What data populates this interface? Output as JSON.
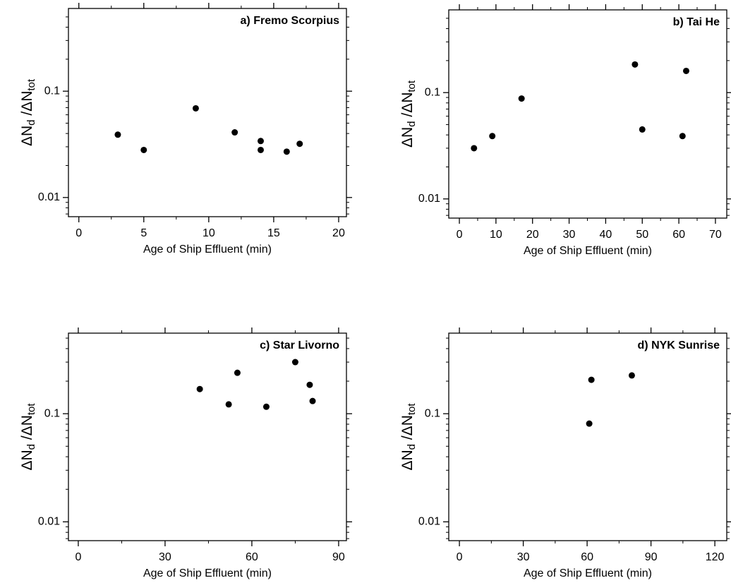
{
  "chart_data": [
    {
      "type": "scatter",
      "title": "a) Fremo Scorpius",
      "xlabel": "Age of Ship Effluent (min)",
      "ylabel_parts": [
        "ΔN",
        "d",
        " /ΔN",
        "tot"
      ],
      "log_y": true,
      "color": "#000000",
      "x": [
        3,
        5,
        9,
        12,
        14,
        14,
        16,
        17
      ],
      "values": [
        0.039,
        0.028,
        0.069,
        0.041,
        0.034,
        0.028,
        0.027,
        0.032
      ],
      "xlim": [
        -0.8,
        20.6
      ],
      "xticks": [
        0,
        5,
        10,
        15,
        20
      ],
      "xminorticks": [
        2.5,
        7.5,
        12.5,
        17.5
      ],
      "ylim": [
        0.0066,
        0.6
      ],
      "yticks": [
        0.01,
        0.1
      ],
      "yminorticks": [
        0.007,
        0.008,
        0.009,
        0.02,
        0.03,
        0.04,
        0.05,
        0.06,
        0.07,
        0.08,
        0.09,
        0.2,
        0.3,
        0.4,
        0.5
      ]
    },
    {
      "type": "scatter",
      "title": "b) Tai He",
      "xlabel": "Age of Ship Effluent (min)",
      "ylabel_parts": [
        "ΔN",
        "d",
        " /ΔN",
        "tot"
      ],
      "log_y": true,
      "color": "#000000",
      "x": [
        4,
        9,
        17,
        48,
        50,
        61,
        62
      ],
      "values": [
        0.03,
        0.039,
        0.088,
        0.184,
        0.045,
        0.039,
        0.16
      ],
      "xlim": [
        -2.9,
        73.1
      ],
      "xticks": [
        0,
        10,
        20,
        30,
        40,
        50,
        60,
        70
      ],
      "xminorticks": [
        5,
        15,
        25,
        35,
        45,
        55,
        65
      ],
      "ylim": [
        0.0066,
        0.6
      ],
      "yticks": [
        0.01,
        0.1
      ],
      "yminorticks": [
        0.007,
        0.008,
        0.009,
        0.02,
        0.03,
        0.04,
        0.05,
        0.06,
        0.07,
        0.08,
        0.09,
        0.2,
        0.3,
        0.4,
        0.5
      ]
    },
    {
      "type": "scatter",
      "title": "c) Star Livorno",
      "xlabel": "Age of Ship Effluent (min)",
      "ylabel_parts": [
        "ΔN",
        "d",
        " /ΔN",
        "tot"
      ],
      "log_y": true,
      "color": "#000000",
      "x": [
        42,
        52,
        55,
        65,
        75,
        80,
        81
      ],
      "values": [
        0.169,
        0.122,
        0.239,
        0.116,
        0.3,
        0.185,
        0.131
      ],
      "xlim": [
        -3.4,
        92.7
      ],
      "xticks": [
        0,
        30,
        60,
        90
      ],
      "xminorticks": [
        15,
        45,
        75
      ],
      "ylim": [
        0.0067,
        0.556
      ],
      "yticks": [
        0.01,
        0.1
      ],
      "yminorticks": [
        0.007,
        0.008,
        0.009,
        0.02,
        0.03,
        0.04,
        0.05,
        0.06,
        0.07,
        0.08,
        0.09,
        0.2,
        0.3,
        0.4,
        0.5
      ]
    },
    {
      "type": "scatter",
      "title": "d) NYK Sunrise",
      "xlabel": "Age of Ship Effluent (min)",
      "ylabel_parts": [
        "ΔN",
        "d",
        " /ΔN",
        "tot"
      ],
      "log_y": true,
      "color": "#000000",
      "x": [
        61,
        62,
        81
      ],
      "values": [
        0.081,
        0.206,
        0.226
      ],
      "xlim": [
        -5,
        125.6
      ],
      "xticks": [
        0,
        30,
        60,
        90,
        120
      ],
      "xminorticks": [
        15,
        45,
        75,
        105
      ],
      "ylim": [
        0.0067,
        0.556
      ],
      "yticks": [
        0.01,
        0.1
      ],
      "yminorticks": [
        0.007,
        0.008,
        0.009,
        0.02,
        0.03,
        0.04,
        0.05,
        0.06,
        0.07,
        0.08,
        0.09,
        0.2,
        0.3,
        0.4,
        0.5
      ]
    }
  ]
}
